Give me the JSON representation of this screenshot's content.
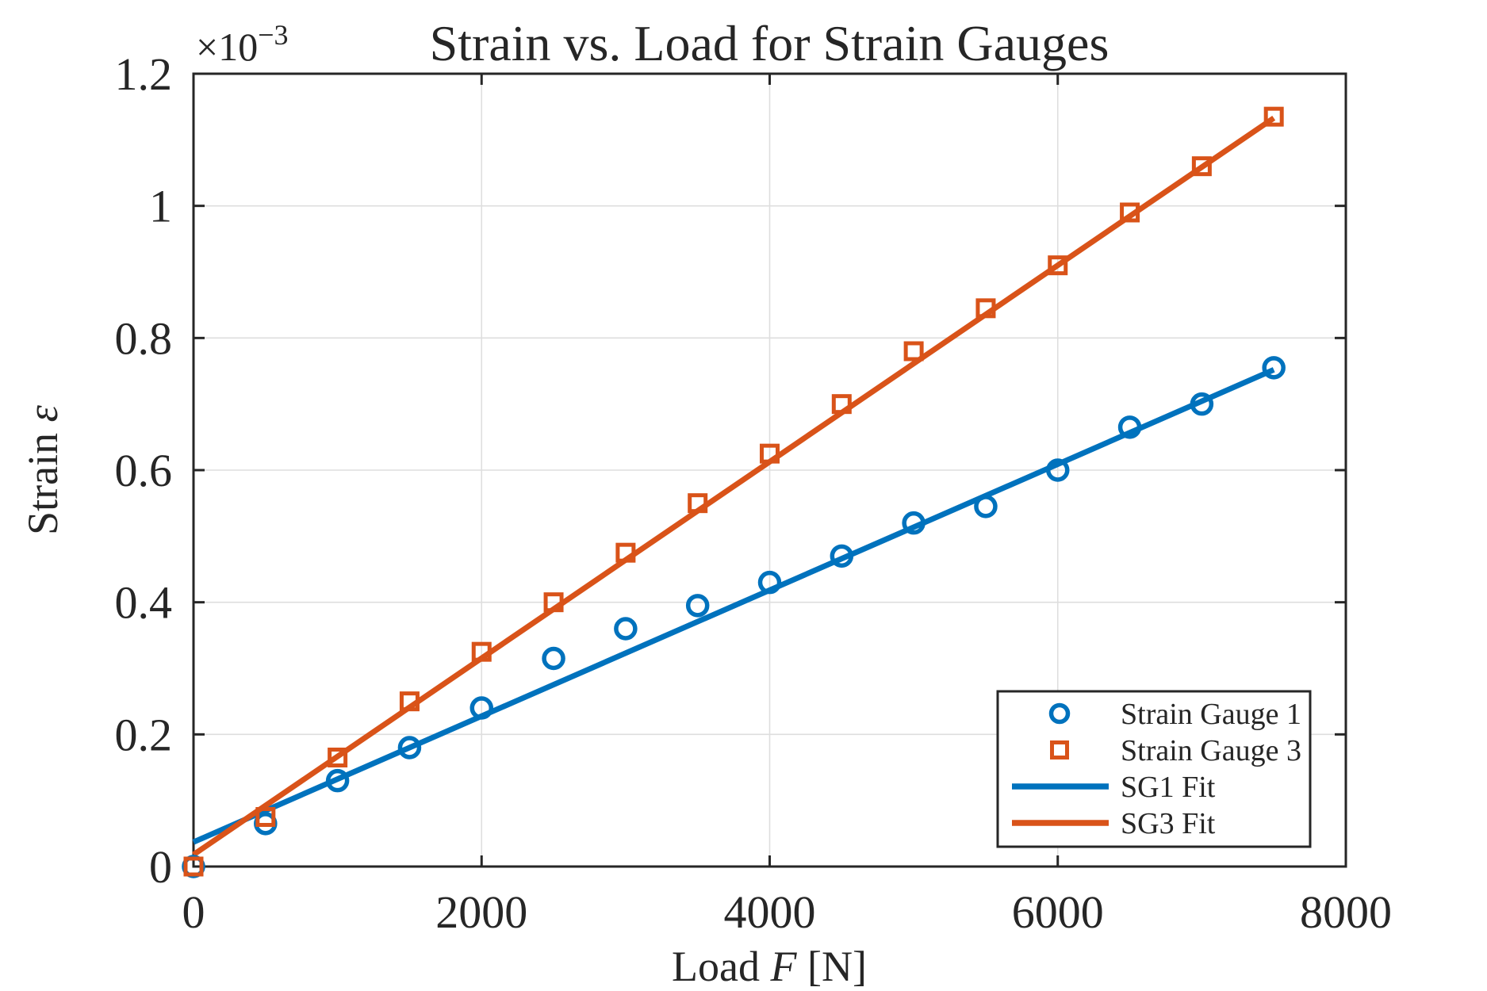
{
  "labels": {
    "xlabel_prefix": "Load ",
    "xlabel_italic": "F",
    "xlabel_suffix": " [N]",
    "ylabel_prefix": "Strain ",
    "ylabel_italic": "ε",
    "multiplier_base": "×10",
    "multiplier_exp": "−3"
  },
  "chart_data": {
    "type": "scatter",
    "title": "Strain vs. Load for Strain Gauges",
    "xlabel": "Load F [N]",
    "ylabel": "Strain ε",
    "y_axis_multiplier": "×10⁻³",
    "grid": true,
    "xlim": [
      0,
      8000
    ],
    "ylim_e3": [
      0,
      1.2
    ],
    "x_tick_values": [
      0,
      2000,
      4000,
      6000,
      8000
    ],
    "x_tick_labels": [
      "0",
      "2000",
      "4000",
      "6000",
      "8000"
    ],
    "y_tick_values_e3": [
      0,
      0.2,
      0.4,
      0.6,
      0.8,
      1,
      1.2
    ],
    "y_tick_labels": [
      "0",
      "0.2",
      "0.4",
      "0.6",
      "0.8",
      "1",
      "1.2"
    ],
    "load_N": [
      0,
      500,
      1000,
      1500,
      2000,
      2500,
      3000,
      3500,
      4000,
      4500,
      5000,
      5500,
      6000,
      6500,
      7000,
      7500
    ],
    "series": [
      {
        "name": "Strain Gauge 1",
        "kind": "scatter",
        "marker": "circle",
        "color": "#0072BD",
        "strain_e3": [
          0.0,
          0.065,
          0.13,
          0.18,
          0.24,
          0.315,
          0.36,
          0.395,
          0.43,
          0.47,
          0.52,
          0.545,
          0.6,
          0.665,
          0.7,
          0.755
        ]
      },
      {
        "name": "Strain Gauge 3",
        "kind": "scatter",
        "marker": "square",
        "color": "#D95319",
        "strain_e3": [
          0.0,
          0.075,
          0.165,
          0.25,
          0.325,
          0.4,
          0.475,
          0.55,
          0.625,
          0.7,
          0.78,
          0.845,
          0.91,
          0.99,
          1.06,
          1.135
        ]
      },
      {
        "name": "SG1 Fit",
        "kind": "line",
        "color": "#0072BD",
        "x_N": [
          0,
          7500
        ],
        "strain_e3": [
          0.037,
          0.752
        ]
      },
      {
        "name": "SG3 Fit",
        "kind": "line",
        "color": "#D95319",
        "x_N": [
          0,
          7500
        ],
        "strain_e3": [
          0.018,
          1.133
        ]
      }
    ],
    "legend": {
      "position": "lower-right-inside",
      "entries": [
        "Strain Gauge 1",
        "Strain Gauge 3",
        "SG1 Fit",
        "SG3 Fit"
      ]
    }
  }
}
